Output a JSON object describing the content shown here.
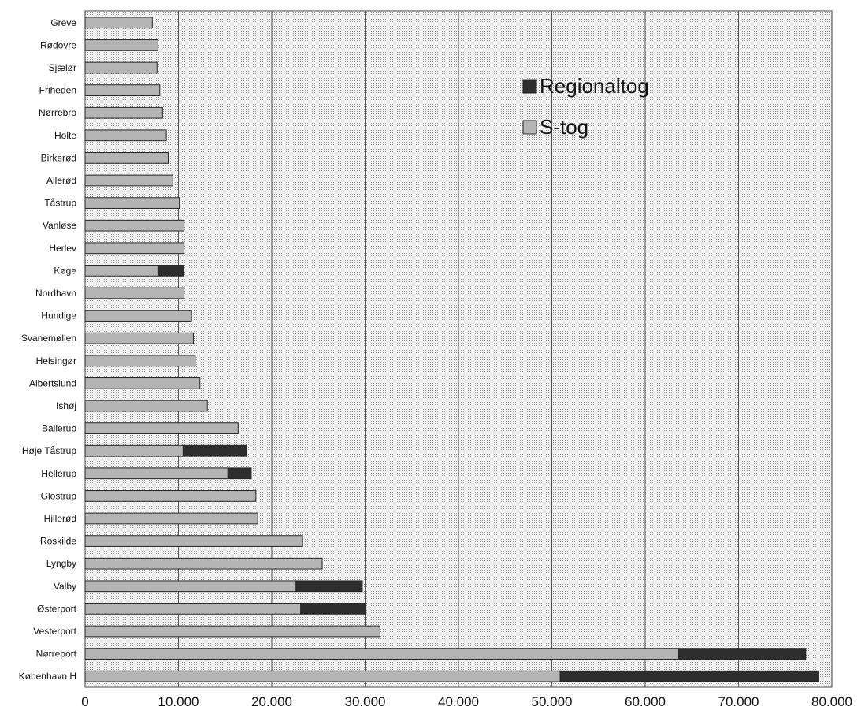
{
  "chart_data": {
    "type": "bar",
    "orientation": "horizontal",
    "stacked": true,
    "categories": [
      "Greve",
      "Rødovre",
      "Sjælør",
      "Friheden",
      "Nørrebro",
      "Holte",
      "Birkerød",
      "Allerød",
      "Tåstrup",
      "Vanløse",
      "Herlev",
      "Køge",
      "Nordhavn",
      "Hundige",
      "Svanemøllen",
      "Helsingør",
      "Albertslund",
      "Ishøj",
      "Ballerup",
      "Høje Tåstrup",
      "Hellerup",
      "Glostrup",
      "Hillerød",
      "Roskilde",
      "Lyngby",
      "Valby",
      "Østerport",
      "Vesterport",
      "Nørreport",
      "København H"
    ],
    "series": [
      {
        "name": "S-tog",
        "color": "#b4b4b4",
        "values": [
          7200,
          7800,
          7700,
          8000,
          8300,
          8700,
          8900,
          9400,
          10100,
          10600,
          10600,
          7800,
          10600,
          11400,
          11600,
          11800,
          12300,
          13100,
          16400,
          10500,
          15300,
          18300,
          18500,
          23300,
          25400,
          22600,
          23100,
          31600,
          63600,
          50900
        ]
      },
      {
        "name": "Regionaltog",
        "color": "#2e2e2e",
        "values": [
          0,
          0,
          0,
          0,
          0,
          0,
          0,
          0,
          0,
          0,
          0,
          2800,
          0,
          0,
          0,
          0,
          0,
          0,
          0,
          6800,
          2500,
          0,
          0,
          0,
          0,
          7100,
          7000,
          0,
          13600,
          27700
        ]
      }
    ],
    "xlim": [
      0,
      80000
    ],
    "xticks": [
      "0",
      "10.000",
      "20.000",
      "30.000",
      "40.000",
      "50.000",
      "60.000",
      "70.000",
      "80.000"
    ],
    "xtick_values": [
      0,
      10000,
      20000,
      30000,
      40000,
      50000,
      60000,
      70000,
      80000
    ],
    "grid": true,
    "legend": {
      "position": "top-right",
      "entries": [
        "Regionaltog",
        "S-tog"
      ]
    }
  }
}
